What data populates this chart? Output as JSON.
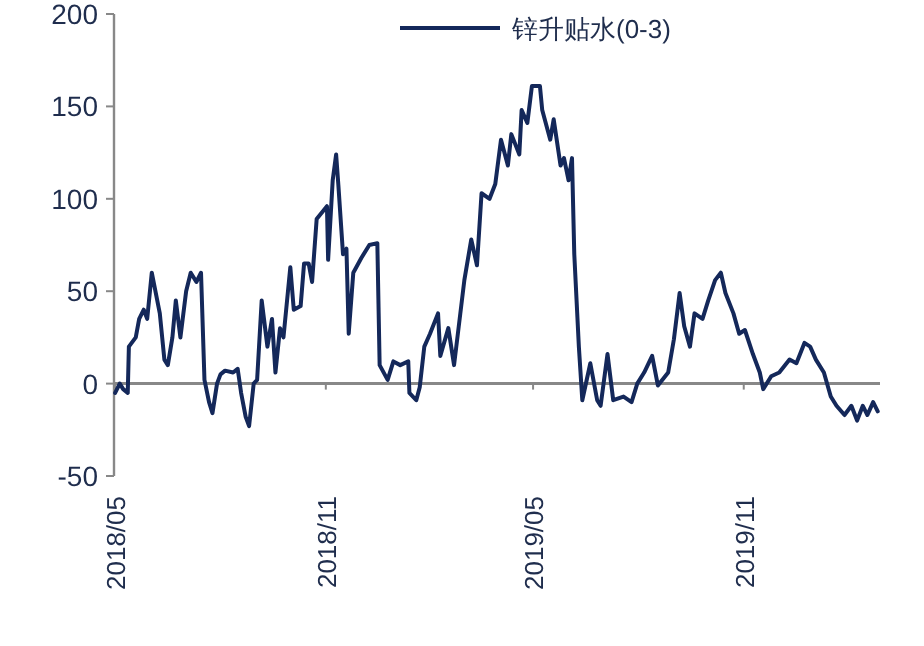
{
  "chart_data": {
    "type": "line",
    "legend": "top",
    "x": [
      "2018-05-01",
      "2018-05-05",
      "2018-05-08",
      "2018-05-12",
      "2018-05-13",
      "2018-05-19",
      "2018-05-22",
      "2018-05-26",
      "2018-05-29",
      "2018-06-02",
      "2018-06-09",
      "2018-06-13",
      "2018-06-16",
      "2018-06-20",
      "2018-06-23",
      "2018-06-27",
      "2018-07-02",
      "2018-07-06",
      "2018-07-11",
      "2018-07-15",
      "2018-07-18",
      "2018-07-22",
      "2018-07-25",
      "2018-07-29",
      "2018-08-01",
      "2018-08-05",
      "2018-08-12",
      "2018-08-16",
      "2018-08-19",
      "2018-08-23",
      "2018-08-26",
      "2018-08-30",
      "2018-09-02",
      "2018-09-06",
      "2018-09-11",
      "2018-09-15",
      "2018-09-18",
      "2018-09-22",
      "2018-09-25",
      "2018-10-01",
      "2018-10-04",
      "2018-10-10",
      "2018-10-13",
      "2018-10-17",
      "2018-10-20",
      "2018-10-24",
      "2018-11-02",
      "2018-11-03",
      "2018-11-07",
      "2018-11-10",
      "2018-11-12",
      "2018-11-16",
      "2018-11-19",
      "2018-11-21",
      "2018-11-25",
      "2018-12-02",
      "2018-12-09",
      "2018-12-16",
      "2018-12-18",
      "2018-12-25",
      "2018-12-30",
      "2019-01-05",
      "2019-01-12",
      "2019-01-13",
      "2019-01-19",
      "2019-01-22",
      "2019-01-26",
      "2019-01-31",
      "2019-02-07",
      "2019-02-09",
      "2019-02-16",
      "2019-02-21",
      "2019-03-02",
      "2019-03-08",
      "2019-03-13",
      "2019-03-17",
      "2019-03-24",
      "2019-03-29",
      "2019-04-03",
      "2019-04-09",
      "2019-04-12",
      "2019-04-19",
      "2019-04-21",
      "2019-04-26",
      "2019-04-30",
      "2019-05-07",
      "2019-05-09",
      "2019-05-16",
      "2019-05-19",
      "2019-05-25",
      "2019-05-28",
      "2019-06-01",
      "2019-06-04",
      "2019-06-06",
      "2019-06-10",
      "2019-06-13",
      "2019-06-20",
      "2019-06-26",
      "2019-06-29",
      "2019-07-05",
      "2019-07-10",
      "2019-07-19",
      "2019-07-26",
      "2019-07-31",
      "2019-08-06",
      "2019-08-13",
      "2019-08-18",
      "2019-08-27",
      "2019-09-01",
      "2019-09-06",
      "2019-09-10",
      "2019-09-15",
      "2019-09-19",
      "2019-09-26",
      "2019-10-01",
      "2019-10-07",
      "2019-10-12",
      "2019-10-16",
      "2019-10-23",
      "2019-10-28",
      "2019-11-02",
      "2019-11-09",
      "2019-11-15",
      "2019-11-18",
      "2019-11-25",
      "2019-12-02",
      "2019-12-11",
      "2019-12-17",
      "2019-12-24",
      "2019-12-29",
      "2020-01-03",
      "2020-01-10",
      "2020-01-16",
      "2020-01-21",
      "2020-01-28",
      "2020-02-03",
      "2020-02-08",
      "2020-02-13",
      "2020-02-17",
      "2020-02-22",
      "2020-02-26"
    ],
    "series": [
      {
        "name": "锌升贴水(0-3)",
        "color": "#14285a",
        "values": [
          -5,
          0,
          -3,
          -5,
          20,
          25,
          35,
          40,
          35,
          60,
          38,
          13,
          10,
          25,
          45,
          25,
          50,
          60,
          55,
          60,
          2,
          -10,
          -16,
          0,
          5,
          7,
          6,
          8,
          -5,
          -18,
          -23,
          0,
          2,
          45,
          20,
          35,
          6,
          30,
          25,
          63,
          40,
          42,
          65,
          65,
          55,
          89,
          96,
          67,
          110,
          124,
          107,
          70,
          73,
          27,
          60,
          68,
          75,
          76,
          10,
          2,
          12,
          10,
          12,
          -5,
          -9,
          -2,
          20,
          27,
          38,
          15,
          30,
          10,
          56,
          78,
          64,
          103,
          100,
          108,
          132,
          118,
          135,
          124,
          148,
          141,
          161,
          161,
          148,
          132,
          143,
          118,
          122,
          110,
          122,
          70,
          20,
          -9,
          11,
          -9,
          -12,
          16,
          -9,
          -7,
          -10,
          0,
          6,
          15,
          -1,
          6,
          24,
          49,
          31,
          20,
          38,
          35,
          45,
          56,
          60,
          49,
          38,
          27,
          29,
          16,
          6,
          -3,
          4,
          6,
          13,
          11,
          22,
          20,
          13,
          6,
          -7,
          -12,
          -17,
          -12,
          -20,
          -12,
          -17,
          -10,
          -15
        ]
      }
    ],
    "xlim": [
      "2018-04-30",
      "2020-02-28"
    ],
    "xticks": [
      {
        "value": "2018-05-01",
        "label": "2018/05"
      },
      {
        "value": "2018-11-01",
        "label": "2018/11"
      },
      {
        "value": "2019-05-01",
        "label": "2019/05"
      },
      {
        "value": "2019-11-01",
        "label": "2019/11"
      }
    ],
    "ylim": [
      -50,
      200
    ],
    "yticks": [
      -50,
      0,
      50,
      100,
      150,
      200
    ]
  }
}
